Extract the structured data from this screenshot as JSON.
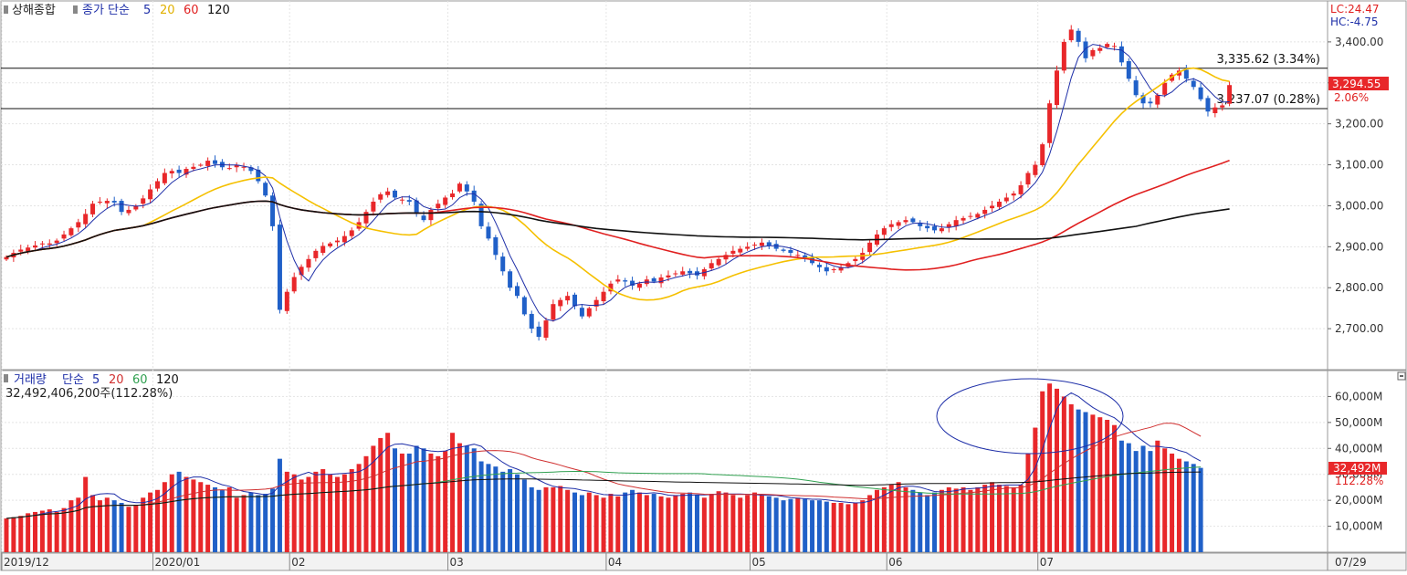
{
  "price_legend": {
    "name": "상해종합",
    "type_label": "종가 단순",
    "periods": [
      "5",
      "20",
      "60",
      "120"
    ]
  },
  "price_info": {
    "lc": "LC:24.47",
    "hc": "HC:-4.75",
    "last_price": "3,294.55",
    "last_change": "2.06%"
  },
  "hlines": [
    {
      "value": 3335.62,
      "label": "3,335.62 (3.34%)"
    },
    {
      "value": 3237.07,
      "label": "3,237.07 (0.28%)"
    }
  ],
  "volume_legend": {
    "name": "거래량",
    "type_label": "단순",
    "periods": [
      "5",
      "20",
      "60",
      "120"
    ],
    "summary": "32,492,406,200주(112.28%)",
    "last_value": "32,492M",
    "last_ratio": "112.28%"
  },
  "colors": {
    "up": "#e8272a",
    "down": "#2060c8",
    "ma5": "#1e2fa8",
    "ma20": "#f5c000",
    "ma60": "#e02020",
    "ma120": "#111111",
    "vma20": "#d03030",
    "vma60": "#30a050",
    "vma120": "#111111"
  },
  "chart_data": [
    {
      "type": "candlestick",
      "name": "상해종합",
      "ylim": [
        2600,
        3500
      ],
      "yticks": [
        2700,
        2800,
        2900,
        3000,
        3100,
        3200,
        3300,
        3400
      ],
      "ytick_labels": [
        "2,700.00",
        "2,800.00",
        "2,900.00",
        "3,000.00",
        "3,100.00",
        "3,200.00",
        "3,300.00",
        "3,400.00"
      ],
      "x_labels": [
        {
          "label": "2019/12",
          "index": 0
        },
        {
          "label": "2020/01",
          "index": 21
        },
        {
          "label": "02",
          "index": 40
        },
        {
          "label": "03",
          "index": 62
        },
        {
          "label": "04",
          "index": 84
        },
        {
          "label": "05",
          "index": 104
        },
        {
          "label": "06",
          "index": 123
        },
        {
          "label": "07",
          "index": 144
        }
      ],
      "future_label": "07/29",
      "close": [
        2875,
        2885,
        2893,
        2898,
        2903,
        2908,
        2908,
        2915,
        2930,
        2945,
        2960,
        2980,
        3005,
        3010,
        3012,
        3008,
        2985,
        2990,
        3000,
        3018,
        3040,
        3060,
        3080,
        3085,
        3080,
        3090,
        3095,
        3100,
        3110,
        3102,
        3094,
        3092,
        3100,
        3095,
        3085,
        3060,
        3025,
        2950,
        2746,
        2790,
        2826,
        2851,
        2870,
        2890,
        2902,
        2908,
        2915,
        2926,
        2940,
        2960,
        2985,
        3010,
        3028,
        3035,
        3020,
        3015,
        3010,
        2980,
        2965,
        2990,
        3005,
        3020,
        3030,
        3054,
        3035,
        3010,
        2950,
        2920,
        2880,
        2840,
        2800,
        2780,
        2735,
        2700,
        2680,
        2720,
        2760,
        2770,
        2780,
        2755,
        2730,
        2750,
        2770,
        2790,
        2810,
        2820,
        2815,
        2805,
        2810,
        2820,
        2815,
        2825,
        2830,
        2835,
        2840,
        2835,
        2830,
        2845,
        2860,
        2870,
        2880,
        2890,
        2895,
        2900,
        2905,
        2910,
        2902,
        2895,
        2890,
        2885,
        2880,
        2870,
        2860,
        2850,
        2840,
        2845,
        2850,
        2860,
        2870,
        2885,
        2910,
        2930,
        2945,
        2955,
        2960,
        2965,
        2960,
        2950,
        2945,
        2940,
        2945,
        2955,
        2965,
        2970,
        2975,
        2980,
        2990,
        3000,
        3010,
        3020,
        3030,
        3050,
        3080,
        3100,
        3150,
        3250,
        3330,
        3400,
        3430,
        3400,
        3360,
        3380,
        3385,
        3395,
        3390,
        3350,
        3310,
        3270,
        3250,
        3250,
        3270,
        3300,
        3320,
        3330,
        3310,
        3290,
        3260,
        3230,
        3240,
        3245,
        3294.55
      ],
      "ma_periods": [
        5,
        20,
        60,
        120
      ],
      "hline_values": [
        3335.62,
        3237.07
      ]
    },
    {
      "type": "bar",
      "name": "거래량",
      "units": "M",
      "ylim": [
        0,
        70000
      ],
      "yticks": [
        10000,
        20000,
        30000,
        40000,
        50000,
        60000
      ],
      "ytick_labels": [
        "10,000M",
        "20,000M",
        "30,000M",
        "40,000M",
        "50,000M",
        "60,000M"
      ],
      "values": [
        13000,
        13500,
        14000,
        15000,
        15500,
        16000,
        16500,
        15500,
        17000,
        20000,
        21000,
        29000,
        22000,
        20000,
        21000,
        20000,
        19000,
        17500,
        18000,
        21000,
        23000,
        24000,
        27000,
        30000,
        31000,
        29000,
        28000,
        27000,
        26000,
        25000,
        24000,
        25000,
        21000,
        22000,
        23000,
        22000,
        22500,
        24500,
        36000,
        31000,
        30000,
        28000,
        29000,
        31000,
        32000,
        30000,
        29000,
        30000,
        32000,
        34000,
        37000,
        41000,
        44000,
        46000,
        40000,
        38000,
        38000,
        41000,
        40000,
        38000,
        37000,
        39000,
        46000,
        42000,
        41000,
        40000,
        35000,
        34000,
        33000,
        31000,
        32000,
        30000,
        28000,
        25000,
        24000,
        25000,
        25000,
        25500,
        24000,
        23000,
        22000,
        23000,
        22000,
        21000,
        22500,
        21500,
        23000,
        24000,
        23000,
        22000,
        22500,
        21500,
        21000,
        22000,
        22500,
        23000,
        22000,
        21000,
        22500,
        23500,
        23000,
        22000,
        21000,
        22000,
        23000,
        22000,
        21500,
        21000,
        20000,
        20500,
        21000,
        20500,
        20000,
        20000,
        19500,
        19000,
        19000,
        18500,
        19000,
        20000,
        22000,
        24000,
        25000,
        26000,
        27000,
        25000,
        24000,
        23000,
        22000,
        23000,
        24000,
        25000,
        24500,
        25000,
        24000,
        25000,
        26000,
        27000,
        26000,
        25500,
        25000,
        26000,
        38000,
        48000,
        62000,
        65000,
        63000,
        60000,
        57000,
        55000,
        54000,
        53000,
        52000,
        51000,
        49000,
        43000,
        42000,
        39000,
        41000,
        39000,
        43000,
        40000,
        38000,
        36000,
        35000,
        34000,
        32492
      ],
      "ma_periods": [
        5,
        20,
        60,
        120
      ]
    }
  ]
}
